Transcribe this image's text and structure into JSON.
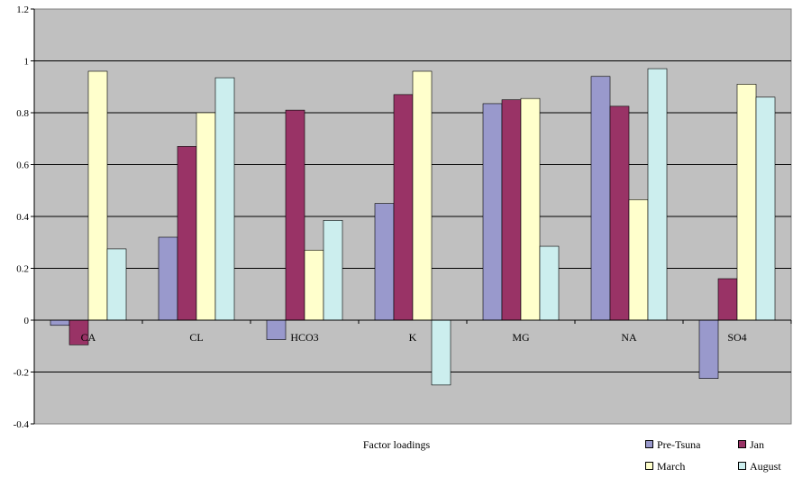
{
  "chart_data": {
    "type": "bar",
    "categories": [
      "CA",
      "CL",
      "HCO3",
      "K",
      "MG",
      "NA",
      "SO4"
    ],
    "series": [
      {
        "name": "Pre-Tsuna",
        "color": "#9999cc",
        "values": [
          -0.02,
          0.32,
          -0.075,
          0.45,
          0.835,
          0.94,
          -0.225
        ]
      },
      {
        "name": "Jan",
        "color": "#993366",
        "values": [
          -0.095,
          0.67,
          0.81,
          0.87,
          0.85,
          0.825,
          0.16
        ]
      },
      {
        "name": "March",
        "color": "#ffffcc",
        "values": [
          0.96,
          0.8,
          0.27,
          0.96,
          0.855,
          0.465,
          0.91
        ]
      },
      {
        "name": "August",
        "color": "#cceeee",
        "values": [
          0.275,
          0.935,
          0.385,
          -0.25,
          0.285,
          0.97,
          0.86
        ]
      }
    ],
    "ylim": [
      -0.4,
      1.2
    ],
    "yticks": [
      "-0.4",
      "-0.2",
      "0",
      "0.2",
      "0.4",
      "0.6",
      "0.8",
      "1",
      "1.2"
    ],
    "xlabel": "Factor loadings",
    "ylabel": "",
    "plot_background": "#c0c0c0",
    "grid": true,
    "legend_position": "bottom-right"
  }
}
